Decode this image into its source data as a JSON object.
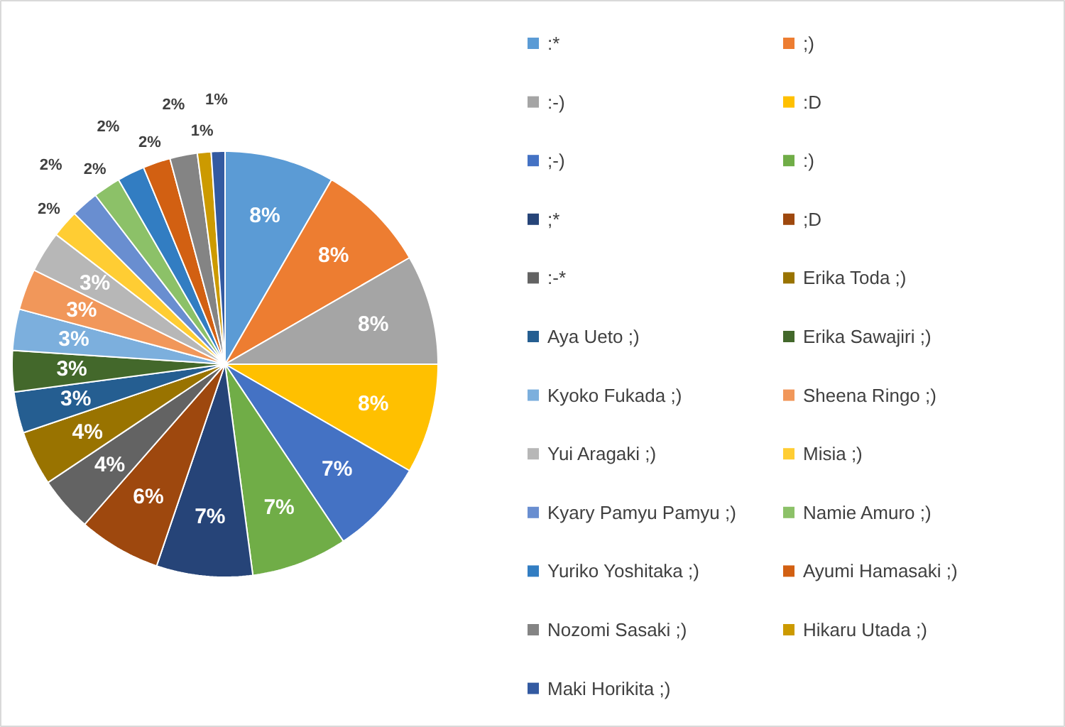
{
  "chart_data": {
    "type": "pie",
    "categories": [
      ":*",
      ";)",
      ":-)",
      ":D",
      ";-)",
      ":)",
      ";*",
      ";D",
      ":-*",
      "Erika Toda ;)",
      "Aya Ueto ;)",
      "Erika Sawajiri ;)",
      "Kyoko Fukada ;)",
      "Sheena Ringo ;)",
      "Yui Aragaki ;)",
      "Misia ;)",
      "Kyary Pamyu Pamyu ;)",
      "Namie Amuro ;)",
      "Yuriko Yoshitaka ;)",
      "Ayumi Hamasaki ;)",
      "Nozomi Sasaki ;)",
      "Hikaru Utada ;)",
      "Maki Horikita ;)"
    ],
    "values": [
      8,
      8,
      8,
      8,
      7,
      7,
      7,
      6,
      4,
      4,
      3,
      3,
      3,
      3,
      3,
      2,
      2,
      2,
      2,
      2,
      2,
      1,
      1
    ],
    "colors": [
      "#5b9bd5",
      "#ed7d31",
      "#a5a5a5",
      "#ffc000",
      "#4472c4",
      "#70ad47",
      "#264478",
      "#9e480e",
      "#636363",
      "#997300",
      "#255e91",
      "#43682b",
      "#7cafdd",
      "#f1975a",
      "#b7b7b7",
      "#ffcd33",
      "#698ed0",
      "#8cc168",
      "#327dc2",
      "#d26012",
      "#848484",
      "#cc9a00",
      "#335aa1"
    ],
    "value_labels": [
      "8%",
      "8%",
      "8%",
      "8%",
      "7%",
      "7%",
      "7%",
      "6%",
      "4%",
      "4%",
      "3%",
      "3%",
      "3%",
      "3%",
      "3%",
      "2%",
      "2%",
      "2%",
      "2%",
      "2%",
      "2%",
      "1%",
      "1%"
    ],
    "legend": "right"
  }
}
